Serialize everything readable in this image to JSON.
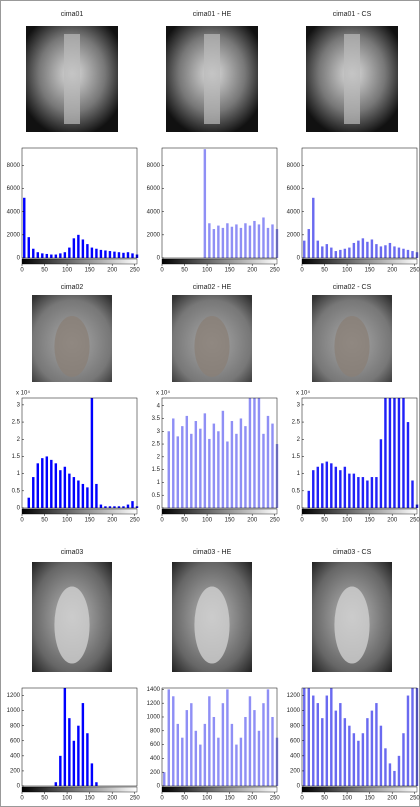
{
  "chart_data": [
    {
      "type": "bar",
      "title": "cima01",
      "color": "#0000ff",
      "xlim": [
        0,
        255
      ],
      "xticks": [
        0,
        50,
        100,
        150,
        200,
        250
      ],
      "ylim": [
        0,
        9500
      ],
      "yticks": [
        0,
        2000,
        4000,
        6000,
        8000
      ],
      "x": [
        5,
        15,
        25,
        35,
        45,
        55,
        65,
        75,
        85,
        95,
        105,
        115,
        125,
        135,
        145,
        155,
        165,
        175,
        185,
        195,
        205,
        215,
        225,
        235,
        245,
        255
      ],
      "values": [
        5200,
        1800,
        800,
        500,
        400,
        350,
        300,
        300,
        400,
        500,
        900,
        1700,
        2000,
        1600,
        1200,
        900,
        800,
        700,
        650,
        600,
        550,
        500,
        450,
        500,
        400,
        300
      ]
    },
    {
      "type": "bar",
      "title": "cima01 - HE",
      "color": "#8f8ff5",
      "xlim": [
        0,
        255
      ],
      "xticks": [
        0,
        50,
        100,
        150,
        200,
        250
      ],
      "ylim": [
        0,
        9500
      ],
      "yticks": [
        0,
        2000,
        4000,
        6000,
        8000
      ],
      "x": [
        5,
        15,
        25,
        35,
        45,
        55,
        65,
        75,
        85,
        95,
        105,
        115,
        125,
        135,
        145,
        155,
        165,
        175,
        185,
        195,
        205,
        215,
        225,
        235,
        245,
        255
      ],
      "values": [
        0,
        0,
        0,
        0,
        0,
        0,
        0,
        0,
        0,
        9400,
        3000,
        2500,
        2800,
        2600,
        3000,
        2700,
        2900,
        2600,
        3000,
        2800,
        3200,
        2900,
        3500,
        2600,
        2900,
        2500
      ]
    },
    {
      "type": "bar",
      "title": "cima01 - CS",
      "color": "#6a6af0",
      "xlim": [
        0,
        255
      ],
      "xticks": [
        0,
        50,
        100,
        150,
        200,
        250
      ],
      "ylim": [
        0,
        9500
      ],
      "yticks": [
        0,
        2000,
        4000,
        6000,
        8000
      ],
      "x": [
        5,
        15,
        25,
        35,
        45,
        55,
        65,
        75,
        85,
        95,
        105,
        115,
        125,
        135,
        145,
        155,
        165,
        175,
        185,
        195,
        205,
        215,
        225,
        235,
        245,
        255
      ],
      "values": [
        1500,
        2500,
        5200,
        1500,
        1000,
        1200,
        900,
        600,
        700,
        800,
        900,
        1300,
        1500,
        1700,
        1400,
        1600,
        1200,
        1000,
        1100,
        1300,
        1000,
        900,
        800,
        700,
        600,
        500
      ]
    },
    {
      "type": "bar",
      "title": "cima02",
      "color": "#0000ff",
      "y_multiplier": "x 10⁴",
      "xlim": [
        0,
        255
      ],
      "xticks": [
        0,
        50,
        100,
        150,
        200,
        250
      ],
      "ylim": [
        0,
        3.2
      ],
      "yticks": [
        0,
        0.5,
        1,
        1.5,
        2,
        2.5,
        3
      ],
      "x": [
        5,
        15,
        25,
        35,
        45,
        55,
        65,
        75,
        85,
        95,
        105,
        115,
        125,
        135,
        145,
        155,
        165,
        175,
        185,
        195,
        205,
        215,
        225,
        235,
        245,
        255
      ],
      "values": [
        0,
        0.3,
        0.9,
        1.3,
        1.45,
        1.5,
        1.4,
        1.3,
        1.1,
        1.2,
        1.0,
        0.9,
        0.8,
        0.7,
        0.6,
        3.2,
        0.7,
        0.1,
        0.05,
        0.05,
        0.05,
        0.05,
        0.05,
        0.1,
        0.2,
        0.05
      ]
    },
    {
      "type": "bar",
      "title": "cima02 - HE",
      "color": "#8f8ff5",
      "y_multiplier": "x 10⁴",
      "xlim": [
        0,
        255
      ],
      "xticks": [
        0,
        50,
        100,
        150,
        200,
        250
      ],
      "ylim": [
        0,
        4.3
      ],
      "yticks": [
        0,
        0.5,
        1,
        1.5,
        2,
        2.5,
        3,
        3.5,
        4
      ],
      "x": [
        5,
        15,
        25,
        35,
        45,
        55,
        65,
        75,
        85,
        95,
        105,
        115,
        125,
        135,
        145,
        155,
        165,
        175,
        185,
        195,
        205,
        215,
        225,
        235,
        245,
        255
      ],
      "values": [
        0,
        3.0,
        3.5,
        2.8,
        3.2,
        3.6,
        2.9,
        3.4,
        3.1,
        3.7,
        2.7,
        3.3,
        3.0,
        3.8,
        2.6,
        3.4,
        2.9,
        3.5,
        3.2,
        4.3,
        4.3,
        4.3,
        2.9,
        3.6,
        3.3,
        2.5
      ]
    },
    {
      "type": "bar",
      "title": "cima02 - CS",
      "color": "#2020f8",
      "y_multiplier": "x 10⁴",
      "xlim": [
        0,
        255
      ],
      "xticks": [
        0,
        50,
        100,
        150,
        200,
        250
      ],
      "ylim": [
        0,
        3.2
      ],
      "yticks": [
        0,
        0.5,
        1,
        1.5,
        2,
        2.5,
        3
      ],
      "x": [
        5,
        15,
        25,
        35,
        45,
        55,
        65,
        75,
        85,
        95,
        105,
        115,
        125,
        135,
        145,
        155,
        165,
        175,
        185,
        195,
        205,
        215,
        225,
        235,
        245,
        255
      ],
      "values": [
        0,
        0.5,
        1.1,
        1.2,
        1.3,
        1.35,
        1.3,
        1.2,
        1.1,
        1.2,
        1.0,
        1.0,
        0.9,
        0.9,
        0.8,
        0.9,
        0.9,
        2.0,
        3.2,
        3.2,
        3.2,
        3.2,
        3.2,
        2.5,
        0.8,
        0.1
      ]
    },
    {
      "type": "bar",
      "title": "cima03",
      "color": "#0000ff",
      "xlim": [
        0,
        255
      ],
      "xticks": [
        0,
        50,
        100,
        150,
        200,
        250
      ],
      "ylim": [
        0,
        1300
      ],
      "yticks": [
        0,
        200,
        400,
        600,
        800,
        1000,
        1200
      ],
      "x": [
        5,
        15,
        25,
        35,
        45,
        55,
        65,
        75,
        85,
        95,
        105,
        115,
        125,
        135,
        145,
        155,
        165,
        175,
        185,
        195,
        205,
        215,
        225,
        235,
        245,
        255
      ],
      "values": [
        0,
        0,
        0,
        0,
        0,
        0,
        0,
        50,
        400,
        1300,
        900,
        600,
        800,
        1100,
        700,
        300,
        50,
        0,
        0,
        0,
        0,
        0,
        0,
        0,
        0,
        0
      ]
    },
    {
      "type": "bar",
      "title": "cima03 - HE",
      "color": "#8f8ff5",
      "xlim": [
        0,
        255
      ],
      "xticks": [
        0,
        50,
        100,
        150,
        200,
        250
      ],
      "ylim": [
        0,
        1420
      ],
      "yticks": [
        0,
        200,
        400,
        600,
        800,
        1000,
        1200,
        1400
      ],
      "x": [
        5,
        15,
        25,
        35,
        45,
        55,
        65,
        75,
        85,
        95,
        105,
        115,
        125,
        135,
        145,
        155,
        165,
        175,
        185,
        195,
        205,
        215,
        225,
        235,
        245,
        255
      ],
      "values": [
        200,
        1400,
        1300,
        900,
        700,
        1100,
        1200,
        800,
        600,
        900,
        1300,
        1000,
        700,
        1200,
        1400,
        900,
        600,
        700,
        1000,
        1300,
        1100,
        800,
        1200,
        1400,
        1000,
        700
      ]
    },
    {
      "type": "bar",
      "title": "cima03 - CS",
      "color": "#6a6af0",
      "xlim": [
        0,
        255
      ],
      "xticks": [
        0,
        50,
        100,
        150,
        200,
        250
      ],
      "ylim": [
        0,
        1300
      ],
      "yticks": [
        0,
        200,
        400,
        600,
        800,
        1000,
        1200
      ],
      "x": [
        5,
        15,
        25,
        35,
        45,
        55,
        65,
        75,
        85,
        95,
        105,
        115,
        125,
        135,
        145,
        155,
        165,
        175,
        185,
        195,
        205,
        215,
        225,
        235,
        245,
        255
      ],
      "values": [
        1300,
        1300,
        1200,
        1100,
        900,
        1200,
        1300,
        1000,
        1100,
        900,
        800,
        700,
        600,
        700,
        900,
        1000,
        1100,
        800,
        500,
        300,
        200,
        400,
        700,
        1200,
        1300,
        1300
      ]
    }
  ]
}
